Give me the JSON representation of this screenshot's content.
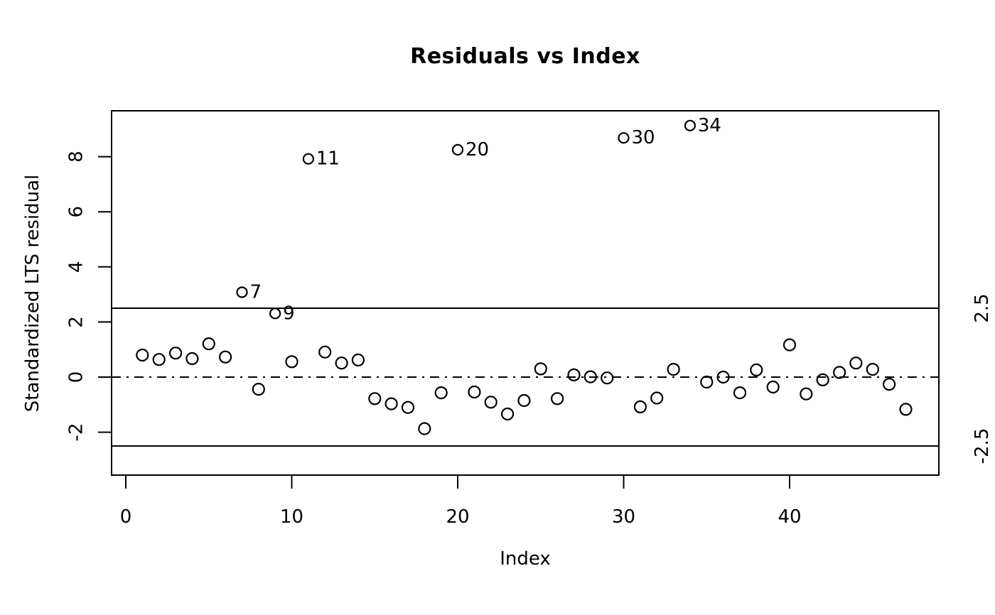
{
  "chart_data": {
    "type": "scatter",
    "title": "Residuals vs Index",
    "xlabel": "Index",
    "ylabel": "Standardized LTS residual",
    "xlim": [
      -0.9,
      49
    ],
    "ylim": [
      -3.6,
      9.7
    ],
    "x_ticks": [
      0,
      10,
      20,
      30,
      40
    ],
    "y_ticks": [
      8,
      6,
      4,
      2,
      0,
      -2
    ],
    "grid": false,
    "marker": "open-circle",
    "point_color": "#000000",
    "background_color": "#ffffff",
    "x": [
      1,
      2,
      3,
      4,
      5,
      6,
      7,
      8,
      9,
      10,
      11,
      12,
      13,
      14,
      15,
      16,
      17,
      18,
      19,
      20,
      21,
      22,
      23,
      24,
      25,
      26,
      27,
      28,
      29,
      30,
      31,
      32,
      33,
      34,
      35,
      36,
      37,
      38,
      39,
      40,
      41,
      42,
      43,
      44,
      45,
      46,
      47
    ],
    "values": [
      0.8,
      0.64,
      0.87,
      0.67,
      1.21,
      0.73,
      3.08,
      -0.44,
      2.31,
      0.56,
      7.92,
      0.91,
      0.51,
      0.62,
      -0.78,
      -0.97,
      -1.1,
      -1.87,
      -0.57,
      8.25,
      -0.54,
      -0.91,
      -1.34,
      -0.85,
      0.3,
      -0.78,
      0.08,
      0.01,
      -0.03,
      8.68,
      -1.08,
      -0.76,
      0.28,
      9.13,
      -0.18,
      0.0,
      -0.57,
      0.26,
      -0.36,
      1.17,
      -0.61,
      -0.1,
      0.17,
      0.51,
      0.28,
      -0.26,
      -1.17
    ],
    "labeled_points": [
      {
        "index": 7,
        "label": "7"
      },
      {
        "index": 9,
        "label": "9"
      },
      {
        "index": 11,
        "label": "11"
      },
      {
        "index": 20,
        "label": "20"
      },
      {
        "index": 30,
        "label": "30"
      },
      {
        "index": 34,
        "label": "34"
      }
    ],
    "threshold_lines": {
      "values": [
        2.5,
        -2.5
      ],
      "style": "solid",
      "labels": [
        "2.5",
        "-2.5"
      ]
    },
    "zero_line": {
      "value": 0,
      "style": "dash-dot"
    }
  }
}
